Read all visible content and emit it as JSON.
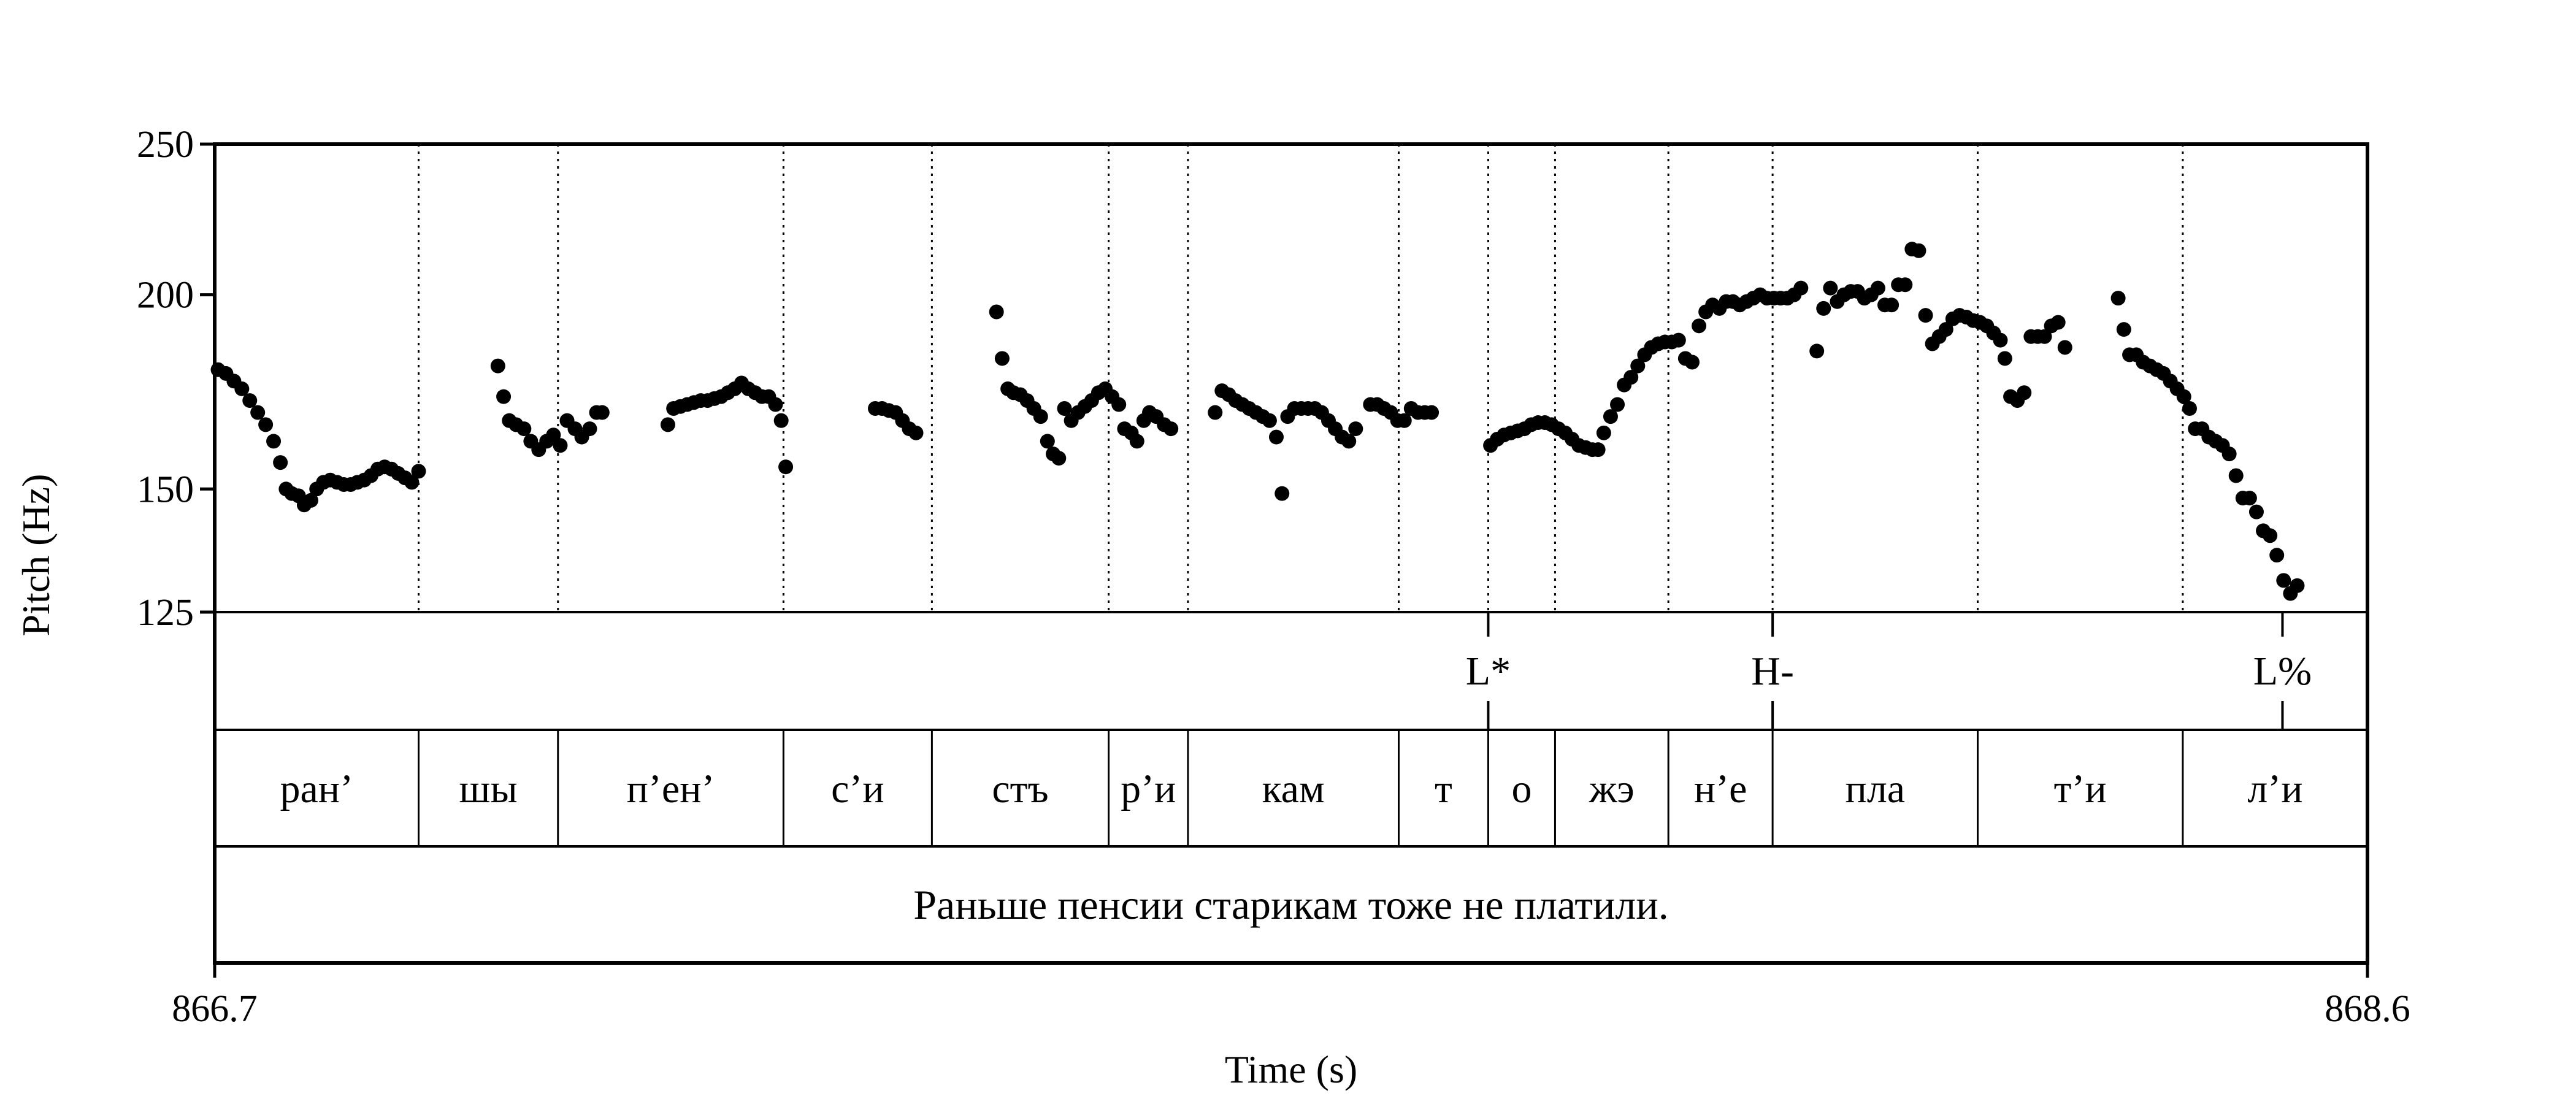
{
  "chart_data": {
    "type": "scatter",
    "xlabel": "Time (s)",
    "ylabel": "Pitch (Hz)",
    "xlim": [
      866.7,
      868.6
    ],
    "ylim": [
      125,
      250
    ],
    "y_ticks": [
      125,
      150,
      200,
      250
    ],
    "x_tick_labels": [
      "866.7",
      "868.6"
    ],
    "y_scale": "log",
    "grid": "dotted vertical lines at syllable boundaries",
    "marker_color": "#000000",
    "syllable_boundaries": [
      866.88,
      867.003,
      867.202,
      867.333,
      867.489,
      867.559,
      867.745,
      867.824,
      867.883,
      867.983,
      868.075,
      868.256,
      868.437
    ],
    "tones": [
      {
        "label": "L*",
        "time": 867.824
      },
      {
        "label": "H-",
        "time": 868.075
      },
      {
        "label": "L%",
        "time": 868.525
      }
    ],
    "syllables": [
      {
        "label": "ран’",
        "start": 866.7,
        "end": 866.88
      },
      {
        "label": "шы",
        "start": 866.88,
        "end": 867.003
      },
      {
        "label": "п’ен’",
        "start": 867.003,
        "end": 867.202
      },
      {
        "label": "с’и",
        "start": 867.202,
        "end": 867.333
      },
      {
        "label": "стъ",
        "start": 867.333,
        "end": 867.489
      },
      {
        "label": "р’и",
        "start": 867.489,
        "end": 867.559
      },
      {
        "label": "кам",
        "start": 867.559,
        "end": 867.745
      },
      {
        "label": "т",
        "start": 867.745,
        "end": 867.824
      },
      {
        "label": "о",
        "start": 867.824,
        "end": 867.883
      },
      {
        "label": "жэ",
        "start": 867.883,
        "end": 867.983
      },
      {
        "label": "н’е",
        "start": 867.983,
        "end": 868.075
      },
      {
        "label": "пла",
        "start": 868.075,
        "end": 868.256
      },
      {
        "label": "т’и",
        "start": 868.256,
        "end": 868.437
      },
      {
        "label": "л’и",
        "start": 868.437,
        "end": 868.6
      }
    ],
    "sentence": "Раньше пенсии старикам тоже не платили.",
    "series": [
      {
        "points": [
          [
            866.703,
            179
          ],
          [
            866.71,
            178
          ],
          [
            866.717,
            176
          ],
          [
            866.724,
            174
          ],
          [
            866.731,
            171
          ],
          [
            866.738,
            168
          ],
          [
            866.745,
            165
          ],
          [
            866.752,
            161
          ],
          [
            866.758,
            156
          ],
          [
            866.763,
            150
          ],
          [
            866.768,
            149
          ],
          [
            866.774,
            148.5
          ],
          [
            866.779,
            146.5
          ],
          [
            866.785,
            147.5
          ],
          [
            866.79,
            150
          ],
          [
            866.796,
            151.5
          ],
          [
            866.802,
            152
          ],
          [
            866.808,
            151.5
          ],
          [
            866.814,
            151
          ],
          [
            866.82,
            151
          ],
          [
            866.826,
            151.5
          ],
          [
            866.832,
            152
          ],
          [
            866.838,
            153
          ],
          [
            866.844,
            154.5
          ],
          [
            866.85,
            155
          ],
          [
            866.856,
            154.5
          ],
          [
            866.862,
            153.5
          ],
          [
            866.868,
            152.5
          ],
          [
            866.874,
            151.5
          ],
          [
            866.88,
            154
          ],
          [
            866.95,
            180
          ],
          [
            866.955,
            172
          ],
          [
            866.96,
            166
          ],
          [
            866.966,
            165
          ],
          [
            866.973,
            164
          ],
          [
            866.979,
            161
          ],
          [
            866.986,
            159
          ],
          [
            866.993,
            161
          ],
          [
            866.999,
            162.5
          ],
          [
            867.005,
            160
          ],
          [
            867.011,
            166
          ],
          [
            867.018,
            164
          ],
          [
            867.024,
            162
          ],
          [
            867.031,
            164
          ],
          [
            867.037,
            168
          ],
          [
            867.042,
            168
          ],
          [
            867.1,
            165
          ],
          [
            867.105,
            169
          ],
          [
            867.111,
            169.5
          ],
          [
            867.117,
            170
          ],
          [
            867.123,
            170.5
          ],
          [
            867.129,
            171
          ],
          [
            867.135,
            171
          ],
          [
            867.141,
            171.5
          ],
          [
            867.147,
            172
          ],
          [
            867.153,
            173
          ],
          [
            867.159,
            174
          ],
          [
            867.165,
            175.5
          ],
          [
            867.171,
            174
          ],
          [
            867.177,
            173
          ],
          [
            867.183,
            172
          ],
          [
            867.189,
            172
          ],
          [
            867.195,
            170
          ],
          [
            867.2,
            166
          ],
          [
            867.204,
            155
          ],
          [
            867.283,
            169
          ],
          [
            867.289,
            169
          ],
          [
            867.295,
            168.5
          ],
          [
            867.301,
            168
          ],
          [
            867.307,
            166
          ],
          [
            867.313,
            164
          ],
          [
            867.319,
            163
          ],
          [
            867.39,
            195
          ],
          [
            867.395,
            182
          ],
          [
            867.4,
            174
          ],
          [
            867.405,
            173
          ],
          [
            867.411,
            172.5
          ],
          [
            867.417,
            171
          ],
          [
            867.423,
            169
          ],
          [
            867.429,
            167
          ],
          [
            867.435,
            161
          ],
          [
            867.44,
            158
          ],
          [
            867.445,
            157
          ],
          [
            867.45,
            169
          ],
          [
            867.456,
            166
          ],
          [
            867.462,
            168
          ],
          [
            867.468,
            169.5
          ],
          [
            867.474,
            171
          ],
          [
            867.48,
            173
          ],
          [
            867.486,
            174
          ],
          [
            867.492,
            172
          ],
          [
            867.498,
            170
          ],
          [
            867.503,
            164
          ],
          [
            867.509,
            163
          ],
          [
            867.514,
            161
          ],
          [
            867.52,
            166
          ],
          [
            867.525,
            168
          ],
          [
            867.531,
            167
          ],
          [
            867.538,
            165
          ],
          [
            867.544,
            164
          ],
          [
            867.583,
            168
          ],
          [
            867.589,
            173.5
          ],
          [
            867.595,
            172.5
          ],
          [
            867.601,
            171
          ],
          [
            867.607,
            170
          ],
          [
            867.613,
            169
          ],
          [
            867.619,
            168
          ],
          [
            867.625,
            167
          ],
          [
            867.631,
            166
          ],
          [
            867.637,
            162
          ],
          [
            867.642,
            149
          ],
          [
            867.647,
            167
          ],
          [
            867.653,
            169
          ],
          [
            867.659,
            169
          ],
          [
            867.665,
            169
          ],
          [
            867.671,
            169
          ],
          [
            867.677,
            168
          ],
          [
            867.683,
            166
          ],
          [
            867.689,
            164
          ],
          [
            867.695,
            162
          ],
          [
            867.701,
            161
          ],
          [
            867.707,
            164
          ],
          [
            867.72,
            170
          ],
          [
            867.726,
            170
          ],
          [
            867.732,
            169
          ],
          [
            867.738,
            168
          ],
          [
            867.744,
            166
          ],
          [
            867.75,
            166
          ],
          [
            867.756,
            169
          ],
          [
            867.762,
            168
          ],
          [
            867.768,
            168
          ],
          [
            867.774,
            168
          ],
          [
            867.826,
            160
          ],
          [
            867.832,
            161.5
          ],
          [
            867.838,
            162.5
          ],
          [
            867.844,
            163
          ],
          [
            867.85,
            163.5
          ],
          [
            867.856,
            164
          ],
          [
            867.862,
            165
          ],
          [
            867.868,
            165.5
          ],
          [
            867.874,
            165.5
          ],
          [
            867.88,
            165
          ],
          [
            867.886,
            164
          ],
          [
            867.892,
            163
          ],
          [
            867.898,
            161.5
          ],
          [
            867.904,
            160
          ],
          [
            867.91,
            159.5
          ],
          [
            867.916,
            159
          ],
          [
            867.921,
            159
          ],
          [
            867.926,
            163
          ],
          [
            867.932,
            167
          ],
          [
            867.938,
            170
          ],
          [
            867.944,
            175
          ],
          [
            867.95,
            177
          ],
          [
            867.956,
            180
          ],
          [
            867.962,
            183
          ],
          [
            867.968,
            185
          ],
          [
            867.974,
            186
          ],
          [
            867.98,
            186.5
          ],
          [
            867.986,
            186.5
          ],
          [
            867.992,
            187
          ],
          [
            867.998,
            182
          ],
          [
            868.004,
            181
          ],
          [
            868.01,
            191
          ],
          [
            868.016,
            195
          ],
          [
            868.022,
            197
          ],
          [
            868.028,
            196
          ],
          [
            868.034,
            198
          ],
          [
            868.04,
            198
          ],
          [
            868.046,
            197
          ],
          [
            868.052,
            198
          ],
          [
            868.058,
            199
          ],
          [
            868.064,
            200
          ],
          [
            868.07,
            199
          ],
          [
            868.076,
            199
          ],
          [
            868.082,
            199
          ],
          [
            868.088,
            199
          ],
          [
            868.094,
            200
          ],
          [
            868.1,
            202
          ],
          [
            868.114,
            184
          ],
          [
            868.12,
            196
          ],
          [
            868.126,
            202
          ],
          [
            868.132,
            198
          ],
          [
            868.138,
            200
          ],
          [
            868.144,
            201
          ],
          [
            868.15,
            201
          ],
          [
            868.156,
            199
          ],
          [
            868.162,
            200
          ],
          [
            868.168,
            202
          ],
          [
            868.174,
            197
          ],
          [
            868.18,
            197
          ],
          [
            868.186,
            203
          ],
          [
            868.192,
            203
          ],
          [
            868.198,
            214
          ],
          [
            868.204,
            213.5
          ],
          [
            868.21,
            194
          ],
          [
            868.216,
            186
          ],
          [
            868.222,
            188
          ],
          [
            868.228,
            190
          ],
          [
            868.234,
            193
          ],
          [
            868.24,
            194
          ],
          [
            868.246,
            193.5
          ],
          [
            868.252,
            192.5
          ],
          [
            868.258,
            192
          ],
          [
            868.264,
            191
          ],
          [
            868.27,
            189
          ],
          [
            868.276,
            187
          ],
          [
            868.28,
            182
          ],
          [
            868.285,
            172
          ],
          [
            868.291,
            171
          ],
          [
            868.297,
            173
          ],
          [
            868.303,
            188
          ],
          [
            868.309,
            188
          ],
          [
            868.315,
            188
          ],
          [
            868.321,
            191
          ],
          [
            868.327,
            192
          ],
          [
            868.333,
            185
          ],
          [
            868.38,
            199
          ],
          [
            868.385,
            190
          ],
          [
            868.39,
            183
          ],
          [
            868.396,
            183
          ],
          [
            868.402,
            181
          ],
          [
            868.408,
            180
          ],
          [
            868.414,
            179
          ],
          [
            868.42,
            178
          ],
          [
            868.426,
            176
          ],
          [
            868.432,
            174
          ],
          [
            868.438,
            172
          ],
          [
            868.443,
            169
          ],
          [
            868.448,
            164
          ],
          [
            868.454,
            164
          ],
          [
            868.46,
            162
          ],
          [
            868.466,
            161
          ],
          [
            868.472,
            160
          ],
          [
            868.478,
            158
          ],
          [
            868.484,
            153
          ],
          [
            868.49,
            148
          ],
          [
            868.496,
            148
          ],
          [
            868.502,
            145
          ],
          [
            868.508,
            141
          ],
          [
            868.514,
            140
          ],
          [
            868.52,
            136
          ],
          [
            868.526,
            131
          ],
          [
            868.532,
            128.5
          ],
          [
            868.538,
            130
          ]
        ]
      }
    ]
  }
}
